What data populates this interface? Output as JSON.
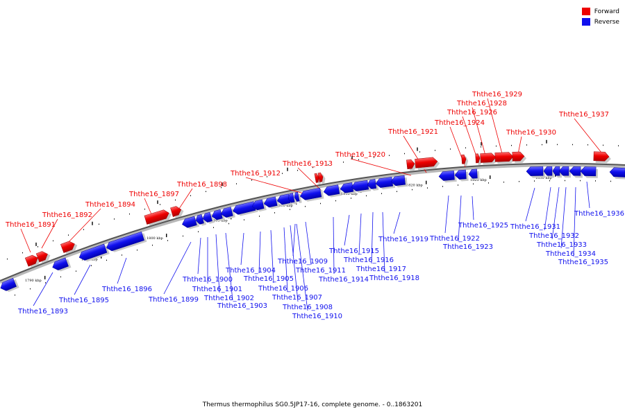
{
  "legend": {
    "forward_label": "Forward",
    "reverse_label": "Reverse",
    "forward_color": "#ee0000",
    "reverse_color": "#1010ee"
  },
  "caption": "Thermus thermophilus SG0.5JP17-16, complete genome. - 0..1863201",
  "tick_labels": [
    "1790 kbp",
    "1795 kbp",
    "1800 kbp",
    "1805 kbp",
    "1810 kbp",
    "1815 kbp",
    "1820 kbp",
    "1825 kbp",
    "1830 kbp"
  ],
  "forward_genes": [
    "Ththe16_1891",
    "Ththe16_1892",
    "Ththe16_1894",
    "Ththe16_1897",
    "Ththe16_1898",
    "Ththe16_1912",
    "Ththe16_1913",
    "Ththe16_1920",
    "Ththe16_1921",
    "Ththe16_1924",
    "Ththe16_1926",
    "Ththe16_1928",
    "Ththe16_1929",
    "Ththe16_1930",
    "Ththe16_1937"
  ],
  "reverse_genes": [
    "Ththe16_1893",
    "Ththe16_1895",
    "Ththe16_1896",
    "Ththe16_1899",
    "Ththe16_1900",
    "Ththe16_1901",
    "Ththe16_1902",
    "Ththe16_1903",
    "Ththe16_1904",
    "Ththe16_1905",
    "Ththe16_1906",
    "Ththe16_1907",
    "Ththe16_1908",
    "Ththe16_1909",
    "Ththe16_1910",
    "Ththe16_1911",
    "Ththe16_1914",
    "Ththe16_1915",
    "Ththe16_1916",
    "Ththe16_1917",
    "Ththe16_1918",
    "Ththe16_1919",
    "Ththe16_1922",
    "Ththe16_1923",
    "Ththe16_1925",
    "Ththe16_1931",
    "Ththe16_1932",
    "Ththe16_1933",
    "Ththe16_1934",
    "Ththe16_1935",
    "Ththe16_1936"
  ]
}
